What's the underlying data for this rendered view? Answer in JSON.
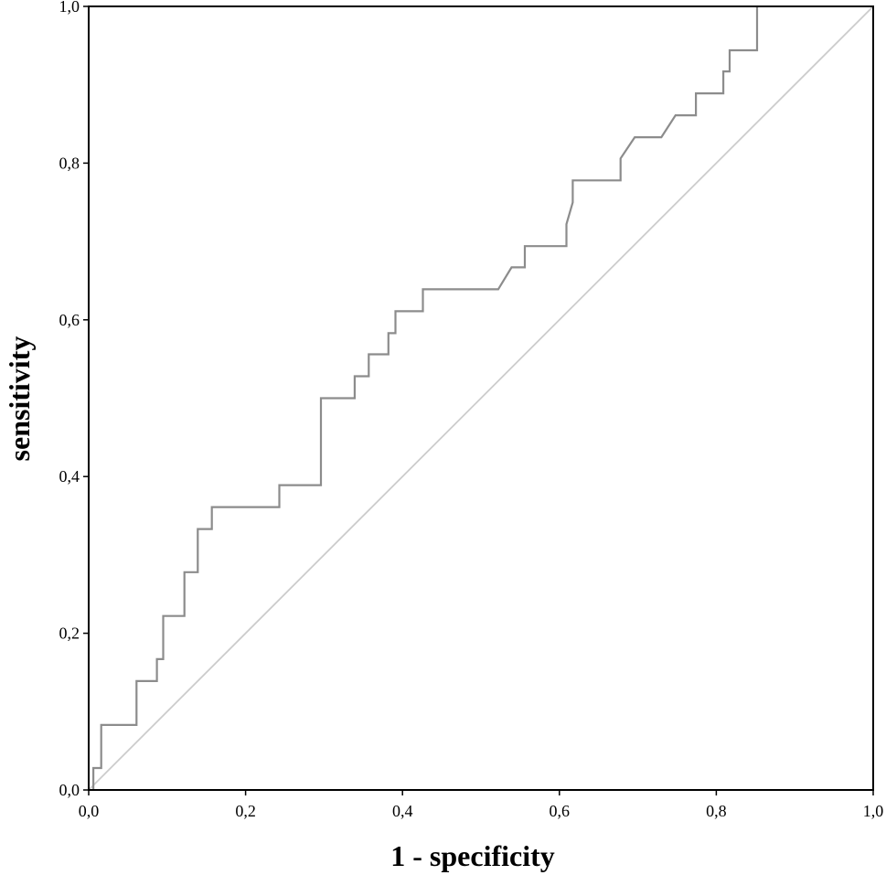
{
  "chart_data": {
    "type": "line",
    "xlabel": "1 - specificity",
    "ylabel": "sensitivity",
    "xlim": [
      0,
      1
    ],
    "ylim": [
      0,
      1
    ],
    "x_ticks": [
      "0,0",
      "0,2",
      "0,4",
      "0,6",
      "0,8",
      "1,0"
    ],
    "y_ticks": [
      "0,0",
      "0,2",
      "0,4",
      "0,6",
      "0,8",
      "1,0"
    ],
    "grid": false,
    "legend": "none",
    "colors": {
      "roc": "#8c8c8c",
      "reference": "#cccccc",
      "axes": "#000000"
    },
    "series": [
      {
        "role": "roc-curve",
        "x": [
          0.006,
          0.006,
          0.016,
          0.016,
          0.061,
          0.061,
          0.087,
          0.087,
          0.095,
          0.095,
          0.122,
          0.122,
          0.139,
          0.139,
          0.157,
          0.157,
          0.243,
          0.243,
          0.296,
          0.296,
          0.339,
          0.339,
          0.357,
          0.357,
          0.382,
          0.382,
          0.391,
          0.391,
          0.426,
          0.426,
          0.522,
          0.539,
          0.556,
          0.556,
          0.609,
          0.609,
          0.617,
          0.617,
          0.678,
          0.678,
          0.696,
          0.73,
          0.748,
          0.774,
          0.774,
          0.809,
          0.809,
          0.817,
          0.817,
          0.852,
          0.852
        ],
        "y": [
          0.0,
          0.028,
          0.028,
          0.083,
          0.083,
          0.139,
          0.139,
          0.167,
          0.167,
          0.222,
          0.222,
          0.278,
          0.278,
          0.333,
          0.333,
          0.361,
          0.361,
          0.389,
          0.389,
          0.5,
          0.5,
          0.528,
          0.528,
          0.556,
          0.556,
          0.583,
          0.583,
          0.611,
          0.611,
          0.639,
          0.639,
          0.667,
          0.667,
          0.694,
          0.694,
          0.722,
          0.75,
          0.778,
          0.778,
          0.806,
          0.833,
          0.833,
          0.861,
          0.861,
          0.889,
          0.889,
          0.917,
          0.917,
          0.944,
          0.944,
          1.0
        ]
      },
      {
        "role": "reference-line",
        "x": [
          0,
          1
        ],
        "y": [
          0,
          1
        ]
      }
    ]
  }
}
